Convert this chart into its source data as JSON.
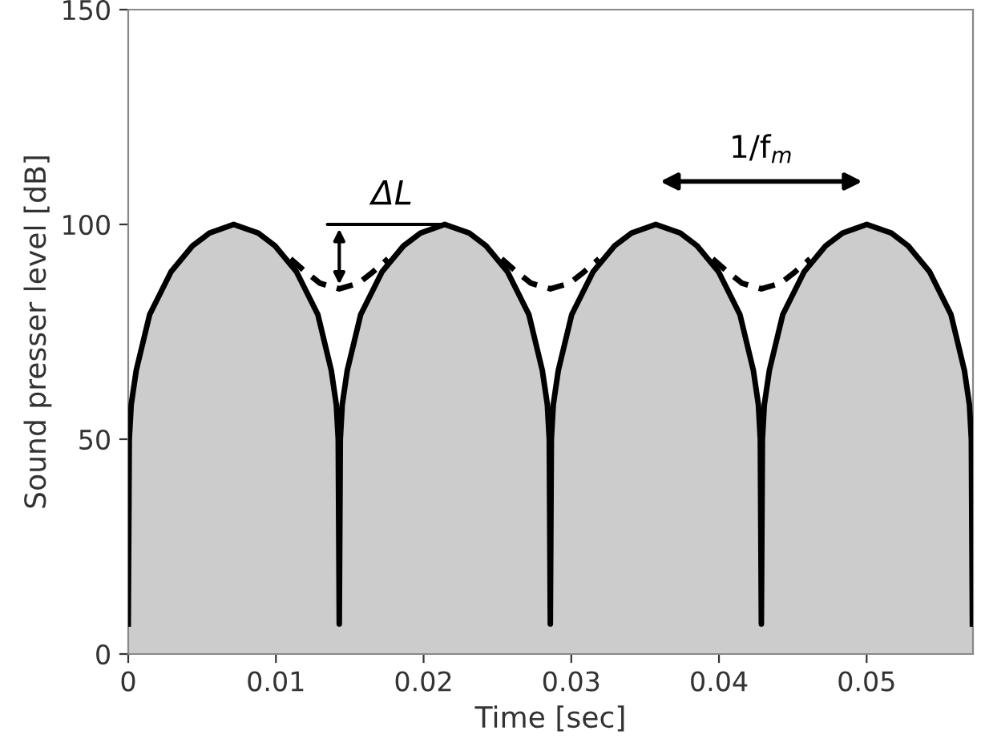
{
  "chart_data": {
    "type": "area",
    "xlabel": "Time [sec]",
    "ylabel": "Sound presser level [dB]",
    "xlim": [
      0,
      0.0572
    ],
    "ylim": [
      0,
      150
    ],
    "xticks": [
      0,
      0.01,
      0.02,
      0.03,
      0.04,
      0.05
    ],
    "yticks": [
      0,
      50,
      100,
      150
    ],
    "grid": false,
    "series": [
      {
        "color": "#cccccc",
        "x": [
          0,
          7e-05,
          0.0002,
          0.00054,
          0.00145,
          0.0029,
          0.00435,
          0.0055,
          0.00714,
          0.0088,
          0.00994,
          0.01139,
          0.01284,
          0.01375,
          0.01409,
          0.01422,
          0.01429,
          0.01436,
          0.01449,
          0.01483,
          0.01574,
          0.01719,
          0.01864,
          0.01979,
          0.02143,
          0.02309,
          0.02423,
          0.02568,
          0.02713,
          0.02804,
          0.02838,
          0.02851,
          0.02858,
          0.02865,
          0.02878,
          0.02912,
          0.03003,
          0.03148,
          0.03293,
          0.03408,
          0.03572,
          0.03738,
          0.03852,
          0.03997,
          0.04142,
          0.04233,
          0.04267,
          0.0428,
          0.04287,
          0.04294,
          0.04307,
          0.04341,
          0.04432,
          0.04577,
          0.04722,
          0.04837,
          0.05001,
          0.05167,
          0.05281,
          0.05426,
          0.05571,
          0.05662,
          0.05696,
          0.05709,
          0.05716
        ],
        "values": [
          7,
          50,
          58,
          66,
          79,
          89,
          95,
          98,
          100,
          98,
          95,
          89,
          79,
          66,
          58,
          50,
          7,
          50,
          58,
          66,
          79,
          89,
          95,
          98,
          100,
          98,
          95,
          89,
          79,
          66,
          58,
          50,
          7,
          50,
          58,
          66,
          79,
          89,
          95,
          98,
          100,
          98,
          95,
          89,
          79,
          66,
          58,
          50,
          7,
          50,
          58,
          66,
          79,
          89,
          95,
          98,
          100,
          98,
          95,
          89,
          79,
          66,
          58,
          50,
          7
        ]
      },
      {
        "type": "line",
        "color": "#000000",
        "line_style": "dashed",
        "x": [
          0.01099,
          0.01199,
          0.01299,
          0.01429,
          0.01559,
          0.01659,
          0.01759,
          0.0214,
          0.02528,
          0.02628,
          0.02728,
          0.02858,
          0.02988,
          0.03088,
          0.03188,
          0.0357,
          0.03957,
          0.04057,
          0.04157,
          0.04287,
          0.04417,
          0.04517,
          0.04617
        ],
        "values": [
          92,
          89,
          86.3,
          85,
          86.3,
          89,
          92,
          null,
          92,
          89,
          86.3,
          85,
          86.3,
          89,
          92,
          null,
          92,
          89,
          86.3,
          85,
          86.3,
          89,
          92
        ]
      }
    ],
    "annotations": [
      {
        "text": "ΔL",
        "x": 0.01429,
        "y": 85
      },
      "1/f$_{m}$"
    ]
  }
}
